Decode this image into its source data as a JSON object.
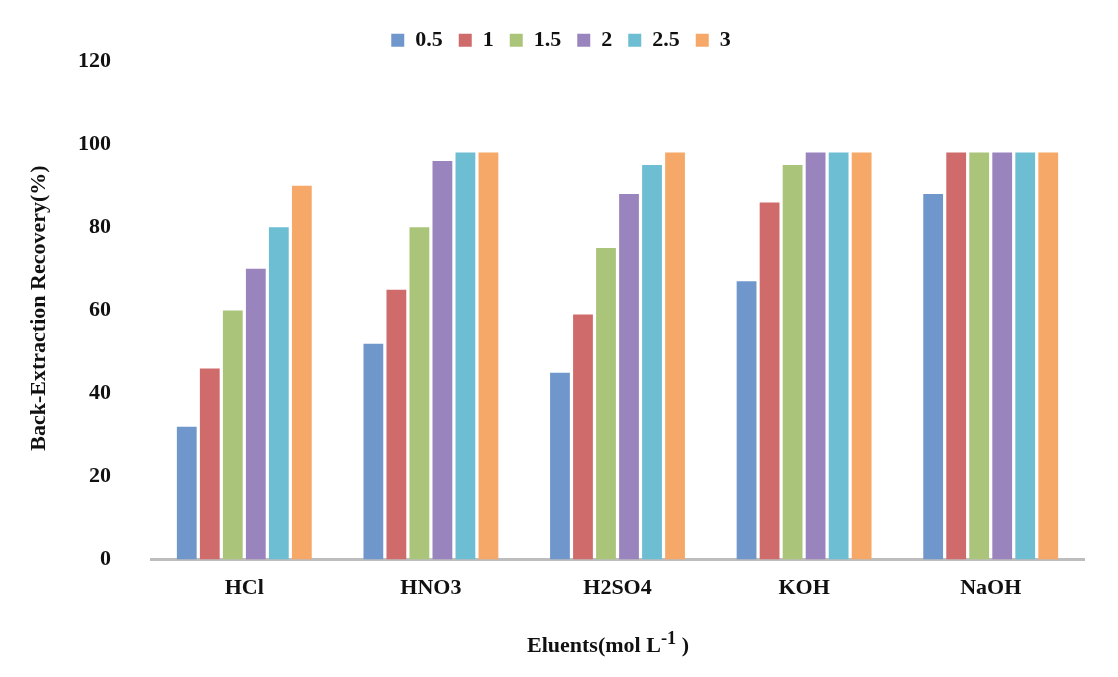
{
  "chart_data": {
    "type": "bar",
    "xlabel": "Eluents(mol L$^{-1}$ )",
    "ylabel": "Back-Extraction Recovery(%)",
    "categories": [
      "HCl",
      "HNO3",
      "H2SO4",
      "KOH",
      "NaOH"
    ],
    "ylim": [
      0,
      120
    ],
    "yticks": [
      0,
      20,
      40,
      60,
      80,
      100,
      120
    ],
    "grid": false,
    "legend": "top",
    "series": [
      {
        "name": "0.5",
        "color": "#6f97cc",
        "values": [
          32,
          52,
          45,
          67,
          88
        ]
      },
      {
        "name": "1",
        "color": "#cf6b6b",
        "values": [
          46,
          65,
          59,
          86,
          98
        ]
      },
      {
        "name": "1.5",
        "color": "#aac57a",
        "values": [
          60,
          80,
          75,
          95,
          98
        ]
      },
      {
        "name": "2",
        "color": "#9a84bd",
        "values": [
          70,
          96,
          88,
          98,
          98
        ]
      },
      {
        "name": "2.5",
        "color": "#6dbdd3",
        "values": [
          80,
          98,
          95,
          98,
          98
        ]
      },
      {
        "name": "3",
        "color": "#f6a868",
        "values": [
          90,
          98,
          98,
          98,
          98
        ]
      }
    ]
  }
}
